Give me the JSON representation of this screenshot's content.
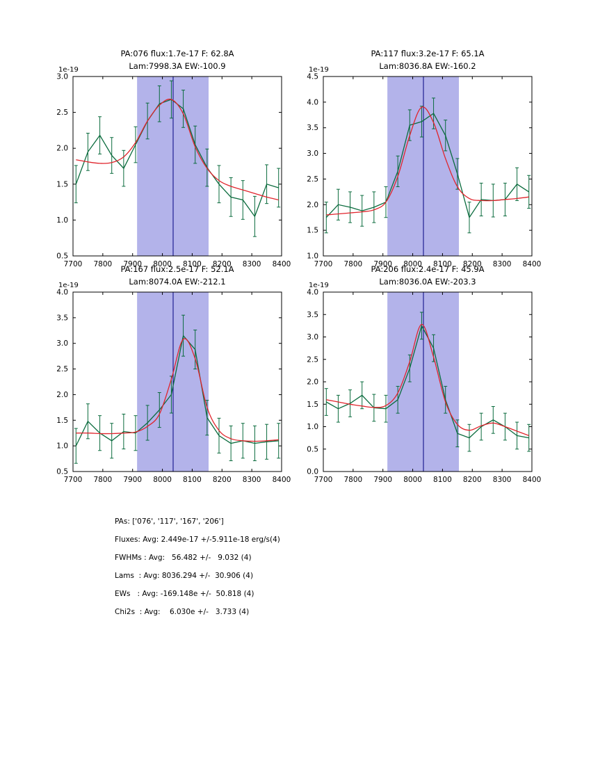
{
  "colors": {
    "band": "#b3b3ea",
    "center_line": "#000080",
    "data_line": "#0a6b3d",
    "fit_line": "#e0242c",
    "frame": "#000000"
  },
  "chart_data": [
    {
      "type": "line",
      "title_line1": "PA:076 flux:1.7e-17 F: 62.8A",
      "title_line2": "Lam:7998.3A EW:-100.9",
      "offset_label": "1e-19",
      "xlabel": "",
      "ylabel": "",
      "xlim": [
        7700,
        8400
      ],
      "ylim": [
        0.5,
        3.0
      ],
      "xticks": [
        7700,
        7800,
        7900,
        8000,
        8100,
        8200,
        8300,
        8400
      ],
      "yticks": [
        0.5,
        1.0,
        1.5,
        2.0,
        2.5,
        3.0
      ],
      "band": [
        7915,
        8155
      ],
      "center_line": 8036,
      "x": [
        7710,
        7750,
        7790,
        7830,
        7870,
        7910,
        7950,
        7990,
        8030,
        8070,
        8110,
        8150,
        8190,
        8230,
        8270,
        8310,
        8350,
        8390
      ],
      "series": [
        {
          "name": "data",
          "values": [
            1.5,
            1.95,
            2.18,
            1.9,
            1.72,
            2.05,
            2.38,
            2.62,
            2.68,
            2.55,
            2.05,
            1.73,
            1.5,
            1.32,
            1.28,
            1.05,
            1.5,
            1.45
          ],
          "yerr": [
            0.26,
            0.26,
            0.26,
            0.25,
            0.25,
            0.25,
            0.25,
            0.25,
            0.26,
            0.26,
            0.26,
            0.26,
            0.26,
            0.27,
            0.27,
            0.28,
            0.27,
            0.27
          ]
        },
        {
          "name": "fit",
          "values": [
            1.84,
            1.81,
            1.79,
            1.8,
            1.88,
            2.08,
            2.38,
            2.6,
            2.68,
            2.48,
            2.02,
            1.72,
            1.55,
            1.47,
            1.42,
            1.37,
            1.32,
            1.28
          ]
        }
      ]
    },
    {
      "type": "line",
      "title_line1": "PA:117 flux:3.2e-17 F: 65.1A",
      "title_line2": "Lam:8036.8A EW:-160.2",
      "offset_label": "1e-19",
      "xlabel": "",
      "ylabel": "",
      "xlim": [
        7700,
        8400
      ],
      "ylim": [
        1.0,
        4.5
      ],
      "xticks": [
        7700,
        7800,
        7900,
        8000,
        8100,
        8200,
        8300,
        8400
      ],
      "yticks": [
        1.0,
        1.5,
        2.0,
        2.5,
        3.0,
        3.5,
        4.0,
        4.5
      ],
      "band": [
        7915,
        8155
      ],
      "center_line": 8036,
      "x": [
        7710,
        7750,
        7790,
        7830,
        7870,
        7910,
        7950,
        7990,
        8030,
        8070,
        8110,
        8150,
        8190,
        8230,
        8270,
        8310,
        8350,
        8390
      ],
      "series": [
        {
          "name": "data",
          "values": [
            1.75,
            2.0,
            1.95,
            1.88,
            1.95,
            2.05,
            2.65,
            3.55,
            3.62,
            3.78,
            3.35,
            2.6,
            1.75,
            2.1,
            2.08,
            2.1,
            2.4,
            2.25
          ],
          "yerr": [
            0.3,
            0.3,
            0.3,
            0.3,
            0.3,
            0.3,
            0.3,
            0.3,
            0.3,
            0.3,
            0.3,
            0.3,
            0.3,
            0.32,
            0.32,
            0.32,
            0.32,
            0.32
          ]
        },
        {
          "name": "fit",
          "values": [
            1.8,
            1.82,
            1.84,
            1.86,
            1.9,
            2.05,
            2.55,
            3.35,
            3.9,
            3.6,
            2.9,
            2.35,
            2.12,
            2.08,
            2.08,
            2.1,
            2.12,
            2.15
          ]
        }
      ]
    },
    {
      "type": "line",
      "title_line1": "PA:167 flux:2.5e-17 F: 52.1A",
      "title_line2": "Lam:8074.0A EW:-212.1",
      "offset_label": "1e-19",
      "xlabel": "",
      "ylabel": "",
      "xlim": [
        7700,
        8400
      ],
      "ylim": [
        0.5,
        4.0
      ],
      "xticks": [
        7700,
        7800,
        7900,
        8000,
        8100,
        8200,
        8300,
        8400
      ],
      "yticks": [
        0.5,
        1.0,
        1.5,
        2.0,
        2.5,
        3.0,
        3.5,
        4.0
      ],
      "band": [
        7915,
        8155
      ],
      "center_line": 8036,
      "x": [
        7710,
        7750,
        7790,
        7830,
        7870,
        7910,
        7950,
        7990,
        8030,
        8070,
        8110,
        8150,
        8190,
        8230,
        8270,
        8310,
        8350,
        8390
      ],
      "series": [
        {
          "name": "data",
          "values": [
            1.0,
            1.48,
            1.25,
            1.1,
            1.28,
            1.25,
            1.45,
            1.7,
            2.0,
            3.15,
            2.88,
            1.55,
            1.2,
            1.05,
            1.1,
            1.05,
            1.08,
            1.1
          ],
          "yerr": [
            0.34,
            0.34,
            0.34,
            0.34,
            0.34,
            0.34,
            0.34,
            0.34,
            0.36,
            0.4,
            0.38,
            0.34,
            0.34,
            0.34,
            0.34,
            0.34,
            0.34,
            0.34
          ]
        },
        {
          "name": "fit",
          "values": [
            1.25,
            1.25,
            1.24,
            1.24,
            1.25,
            1.27,
            1.38,
            1.62,
            2.3,
            3.08,
            2.7,
            1.75,
            1.3,
            1.14,
            1.1,
            1.09,
            1.1,
            1.12
          ]
        }
      ]
    },
    {
      "type": "line",
      "title_line1": "PA:206 flux:2.4e-17 F: 45.9A",
      "title_line2": "Lam:8036.0A EW:-203.3",
      "offset_label": "1e-19",
      "xlabel": "",
      "ylabel": "",
      "xlim": [
        7700,
        8400
      ],
      "ylim": [
        0.0,
        4.0
      ],
      "xticks": [
        7700,
        7800,
        7900,
        8000,
        8100,
        8200,
        8300,
        8400
      ],
      "yticks": [
        0.0,
        0.5,
        1.0,
        1.5,
        2.0,
        2.5,
        3.0,
        3.5,
        4.0
      ],
      "band": [
        7915,
        8155
      ],
      "center_line": 8036,
      "x": [
        7710,
        7750,
        7790,
        7830,
        7870,
        7910,
        7950,
        7990,
        8030,
        8070,
        8110,
        8150,
        8190,
        8230,
        8270,
        8310,
        8350,
        8390
      ],
      "series": [
        {
          "name": "data",
          "values": [
            1.55,
            1.4,
            1.52,
            1.7,
            1.42,
            1.4,
            1.6,
            2.3,
            3.25,
            2.75,
            1.6,
            0.85,
            0.75,
            1.0,
            1.15,
            1.0,
            0.8,
            0.75
          ],
          "yerr": [
            0.3,
            0.3,
            0.3,
            0.3,
            0.3,
            0.3,
            0.3,
            0.3,
            0.3,
            0.3,
            0.3,
            0.3,
            0.3,
            0.3,
            0.3,
            0.3,
            0.3,
            0.3
          ]
        },
        {
          "name": "fit",
          "values": [
            1.6,
            1.55,
            1.5,
            1.46,
            1.43,
            1.47,
            1.75,
            2.45,
            3.28,
            2.55,
            1.55,
            1.05,
            0.92,
            1.02,
            1.08,
            1.0,
            0.9,
            0.8
          ]
        }
      ]
    }
  ],
  "stats": {
    "lines": [
      "PAs: ['076', '117', '167', '206']",
      "Fluxes: Avg: 2.449e-17 +/-5.911e-18 erg/s(4)",
      "FWHMs : Avg:   56.482 +/-   9.032 (4)",
      "Lams  : Avg: 8036.294 +/-  30.906 (4)",
      "EWs   : Avg: -169.148e +/-  50.818 (4)",
      "Chi2s  : Avg:    6.030e +/-   3.733 (4)"
    ]
  }
}
